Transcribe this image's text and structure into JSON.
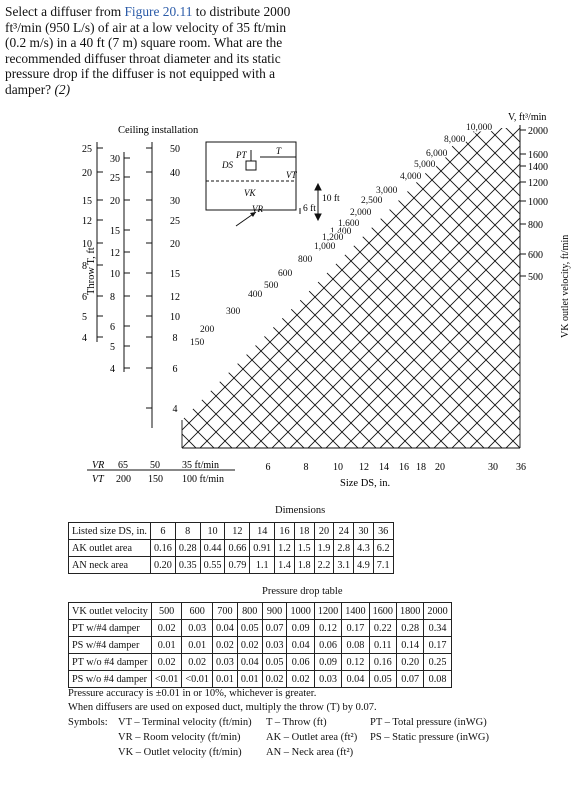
{
  "question": {
    "part1": "Select a diffuser from ",
    "link": "Figure 20.11",
    "part2": " to distribute 2000 ft³/min (950 L/s) of air at a low velocity of 35 ft/min (0.2 m/s) in a 40 ft (7 m) square room. What are the recommended diffuser throat diameter and its static pressure drop if the diffuser is not equipped with a damper?",
    "points": "(2)"
  },
  "chart": {
    "ceiling_label": "Ceiling installation",
    "throw_axis_label": "Throw T, ft",
    "outlet_velocity_label": "VK outlet velocity, ft/min",
    "flow_label": "V, ft³/min",
    "size_label": "Size DS, in.",
    "vr_label": "VR",
    "vt_label": "VT",
    "vr_values": [
      "65",
      "50",
      "35 ft/min"
    ],
    "vt_values": [
      "200",
      "150",
      "100 ft/min"
    ],
    "throw_scale": [
      "25",
      "20",
      "15",
      "12",
      "10",
      "8",
      "6",
      "5",
      "4"
    ],
    "scale2": [
      "30",
      "25",
      "20",
      "15",
      "12",
      "10",
      "8",
      "6",
      "5",
      "4"
    ],
    "scale3": [
      "50",
      "40",
      "30",
      "25",
      "20",
      "15",
      "12",
      "10",
      "8",
      "6",
      "4"
    ],
    "outlet_velocity_scale": [
      "2000",
      "1600",
      "1400",
      "1200",
      "1000",
      "800",
      "600",
      "500"
    ],
    "size_values": [
      "6",
      "8",
      "10",
      "12",
      "14",
      "16",
      "18",
      "20",
      "30",
      "36"
    ],
    "flow_values": [
      "10,000",
      "8,000",
      "6,000",
      "5,000",
      "4,000",
      "3,000",
      "2,500",
      "2,000",
      "1,600",
      "1,400",
      "1,200",
      "1,000",
      "800",
      "600",
      "500",
      "400",
      "300",
      "200",
      "150"
    ],
    "inset": {
      "pt": "PT",
      "t": "T",
      "ds": "DS",
      "vt": "VT",
      "vk": "VK",
      "vr": "VR",
      "ten_ft": "10 ft",
      "six_ft": "6 ft"
    }
  },
  "dimensions": {
    "title": "Dimensions",
    "rows": [
      {
        "label": "Listed size DS, in.",
        "values": [
          "6",
          "8",
          "10",
          "12",
          "14",
          "16",
          "18",
          "20",
          "24",
          "30",
          "36"
        ]
      },
      {
        "label": "AK outlet area",
        "values": [
          "0.16",
          "0.28",
          "0.44",
          "0.66",
          "0.91",
          "1.2",
          "1.5",
          "1.9",
          "2.8",
          "4.3",
          "6.2"
        ]
      },
      {
        "label": "AN neck area",
        "values": [
          "0.20",
          "0.35",
          "0.55",
          "0.79",
          "1.1",
          "1.4",
          "1.8",
          "2.2",
          "3.1",
          "4.9",
          "7.1"
        ]
      }
    ]
  },
  "pressure_drop": {
    "title": "Pressure drop table",
    "rows": [
      {
        "label": "VK outlet velocity",
        "values": [
          "500",
          "600",
          "700",
          "800",
          "900",
          "1000",
          "1200",
          "1400",
          "1600",
          "1800",
          "2000"
        ]
      },
      {
        "label": "PT w/#4 damper",
        "values": [
          "0.02",
          "0.03",
          "0.04",
          "0.05",
          "0.07",
          "0.09",
          "0.12",
          "0.17",
          "0.22",
          "0.28",
          "0.34"
        ]
      },
      {
        "label": "PS w/#4 damper",
        "values": [
          "0.01",
          "0.01",
          "0.02",
          "0.02",
          "0.03",
          "0.04",
          "0.06",
          "0.08",
          "0.11",
          "0.14",
          "0.17"
        ]
      },
      {
        "label": "PT w/o #4 damper",
        "values": [
          "0.02",
          "0.02",
          "0.03",
          "0.04",
          "0.05",
          "0.06",
          "0.09",
          "0.12",
          "0.16",
          "0.20",
          "0.25"
        ]
      },
      {
        "label": "PS w/o #4 damper",
        "values": [
          "<0.01",
          "<0.01",
          "0.01",
          "0.01",
          "0.02",
          "0.02",
          "0.03",
          "0.04",
          "0.05",
          "0.07",
          "0.08"
        ]
      }
    ]
  },
  "notes": {
    "accuracy": "Pressure accuracy is ±0.01 in or 10%, whichever is greater.",
    "exposed": "When diffusers are used on exposed duct, multiply the throw (T) by 0.07.",
    "symbols_label": "Symbols:",
    "sym1": "VT – Terminal velocity (ft/min)",
    "sym2": "T – Throw (ft)",
    "sym3": "PT – Total pressure (inWG)",
    "sym4": "VR – Room velocity (ft/min)",
    "sym5": "AK – Outlet area (ft²)",
    "sym6": "PS – Static pressure (inWG)",
    "sym7": "VK – Outlet velocity (ft/min)",
    "sym8": "AN – Neck area (ft²)"
  }
}
